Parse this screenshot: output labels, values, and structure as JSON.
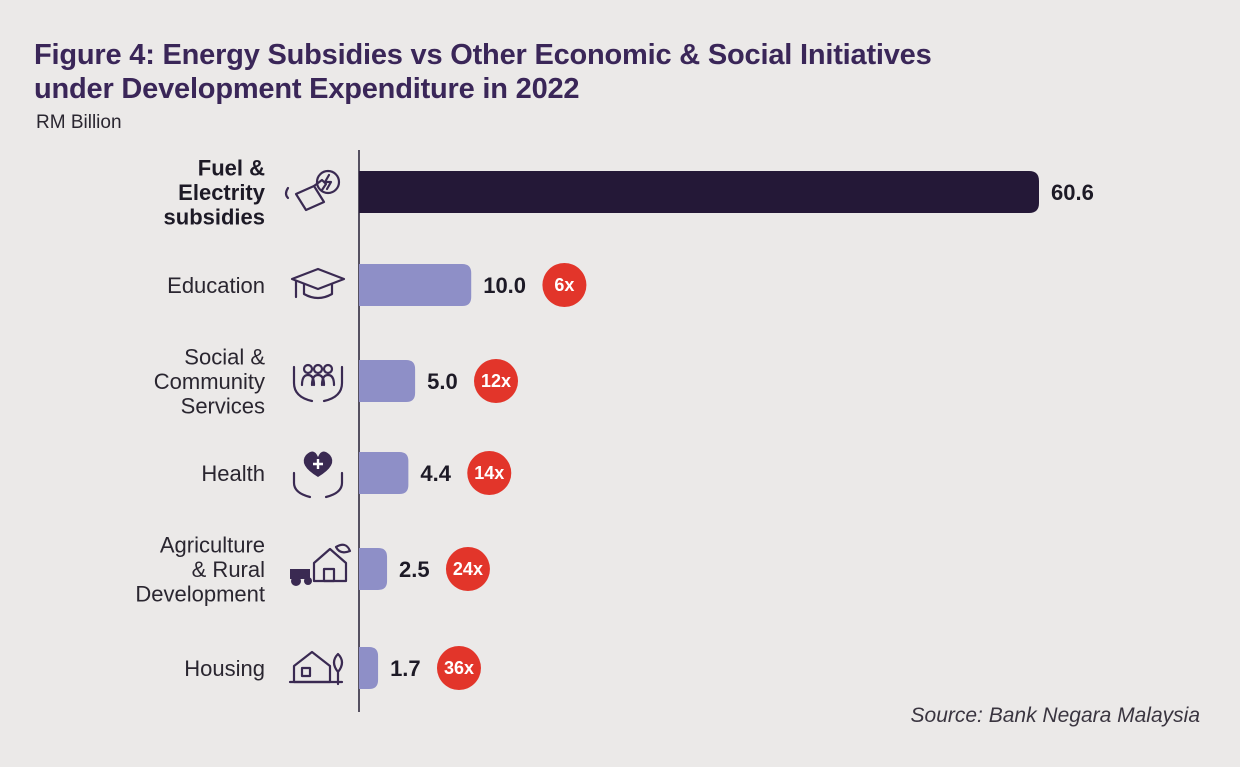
{
  "chart_data": {
    "type": "bar",
    "orientation": "horizontal",
    "title_line1": "Figure 4: Energy Subsidies vs Other Economic & Social Initiatives",
    "title_line2": "under Development Expenditure in 2022",
    "unit": "RM Billion",
    "source": "Source: Bank Negara Malaysia",
    "categories": [
      [
        "Fuel &",
        "Electrity",
        "subsidies"
      ],
      [
        "Education"
      ],
      [
        "Social &",
        "Community",
        "Services"
      ],
      [
        "Health"
      ],
      [
        "Agriculture",
        "& Rural",
        "Development"
      ],
      [
        "Housing"
      ]
    ],
    "values": [
      60.6,
      10.0,
      5.0,
      4.4,
      2.5,
      1.7
    ],
    "value_labels": [
      "60.6",
      "10.0",
      "5.0",
      "4.4",
      "2.5",
      "1.7"
    ],
    "multipliers": [
      "",
      "6x",
      "12x",
      "14x",
      "24x",
      "36x"
    ],
    "icons": [
      "fuel-electricity-icon",
      "graduation-cap-icon",
      "community-hands-icon",
      "health-heart-hands-icon",
      "agriculture-tractor-icon",
      "housing-icon"
    ],
    "xlim": [
      0,
      60.6
    ],
    "colors": {
      "highlight_bar": "#241837",
      "bar": "#8e8fc7",
      "badge": "#e2352a",
      "title": "#3a2658",
      "axis": "#555060"
    }
  }
}
